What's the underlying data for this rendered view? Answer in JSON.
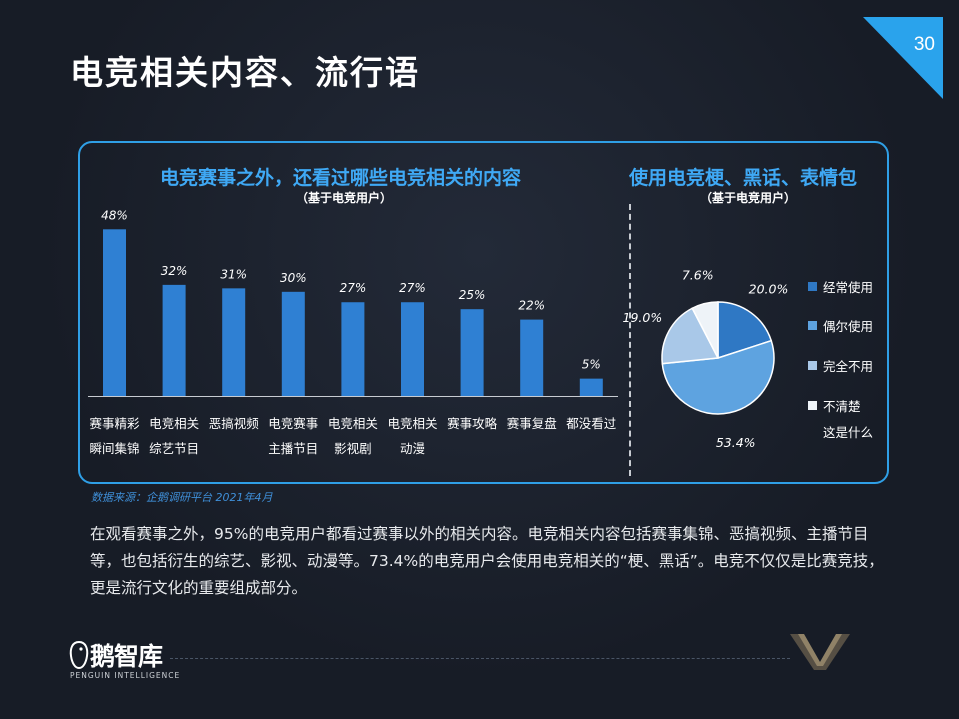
{
  "page": {
    "number": "30",
    "title": "电竞相关内容、流行语"
  },
  "left_section": {
    "title": "电竞赛事之外，还看过哪些电竞相关的内容",
    "subtitle": "（基于电竞用户）"
  },
  "right_section": {
    "title": "使用电竞梗、黑话、表情包",
    "subtitle": "（基于电竞用户）"
  },
  "chart_data": [
    {
      "type": "bar",
      "categories": [
        [
          "赛事精彩",
          "瞬间集锦"
        ],
        [
          "电竞相关",
          "综艺节目"
        ],
        [
          "恶搞视频"
        ],
        [
          "电竞赛事",
          "主播节目"
        ],
        [
          "电竞相关",
          "影视剧"
        ],
        [
          "电竞相关",
          "动漫"
        ],
        [
          "赛事攻略"
        ],
        [
          "赛事复盘"
        ],
        [
          "都没看过"
        ]
      ],
      "values": [
        48,
        32,
        31,
        30,
        27,
        27,
        25,
        22,
        5
      ],
      "value_labels": [
        "48%",
        "32%",
        "31%",
        "30%",
        "27%",
        "27%",
        "25%",
        "22%",
        "5%"
      ],
      "unit": "%",
      "ylim": [
        0,
        55
      ],
      "grid": false,
      "bar_color": "#2f80d3"
    },
    {
      "type": "pie",
      "slices": [
        {
          "label": "经常使用",
          "value": 20.0,
          "value_label": "20.0%",
          "color": "#2f78c4"
        },
        {
          "label": "偶尔使用",
          "value": 53.4,
          "value_label": "53.4%",
          "color": "#5ea3e0"
        },
        {
          "label": "完全不用",
          "value": 19.0,
          "value_label": "19.0%",
          "color": "#a9c8e8"
        },
        {
          "label": [
            "不清楚",
            "这是什么"
          ],
          "value": 7.6,
          "value_label": "7.6%",
          "color": "#eef3f8"
        }
      ],
      "legend": "right"
    }
  ],
  "source": "数据来源：企鹅调研平台 2021年4月",
  "body_text": "在观看赛事之外，95%的电竞用户都看过赛事以外的相关内容。电竞相关内容包括赛事集锦、恶搞视频、主播节目等，也包括衍生的综艺、影视、动漫等。73.4%的电竞用户会使用电竞相关的“梗、黑话”。电竞不仅仅是比赛竞技，更是流行文化的重要组成部分。",
  "logo": {
    "name": "鹅智库",
    "tagline": "PENGUIN INTELLIGENCE"
  },
  "colors": {
    "accent": "#2f9fe6",
    "background": "#171c26"
  }
}
